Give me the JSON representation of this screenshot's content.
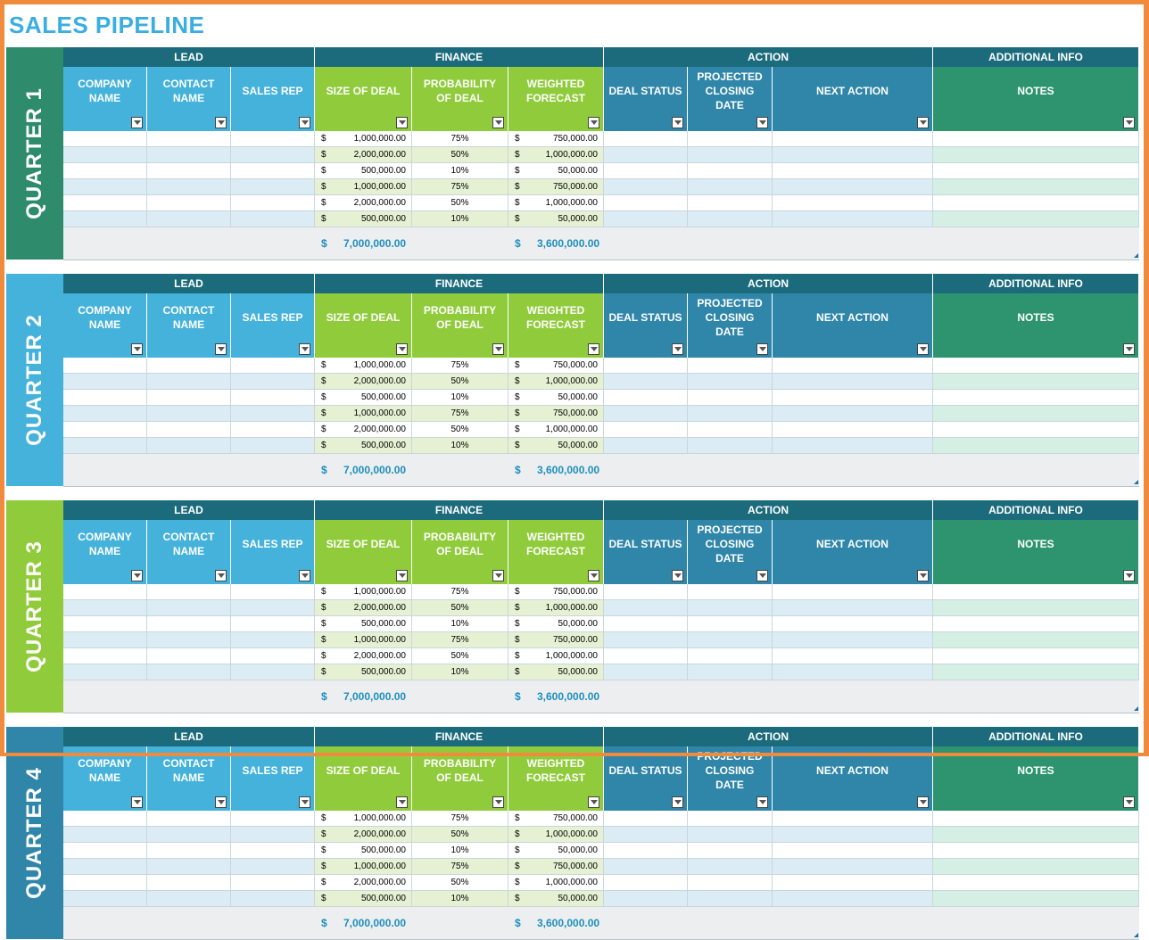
{
  "title": "SALES PIPELINE",
  "colors": {
    "frame": "#f08a3c",
    "title": "#3aaee0",
    "lead_header": "#45b2dc",
    "finance_header": "#8fcb3a",
    "action_header": "#2f86a8",
    "info_header": "#2e9470",
    "group_header": "#1b6b7c",
    "row_lead_alt": "#dcecf5",
    "row_finance_alt": "#e5f1d2",
    "row_info_alt": "#d6efe4",
    "total_text": "#1e8fbd",
    "quarter_colors": [
      "#2e8c6c",
      "#45b2dc",
      "#8fcb3a",
      "#2f86a8"
    ]
  },
  "groups": [
    "LEAD",
    "FINANCE",
    "ACTION",
    "ADDITIONAL INFO"
  ],
  "columns": [
    {
      "label": "COMPANY NAME",
      "group": "LEAD"
    },
    {
      "label": "CONTACT NAME",
      "group": "LEAD"
    },
    {
      "label": "SALES REP",
      "group": "LEAD"
    },
    {
      "label": "SIZE OF DEAL",
      "group": "FINANCE"
    },
    {
      "label": "PROBABILITY OF DEAL",
      "group": "FINANCE"
    },
    {
      "label": "WEIGHTED FORECAST",
      "group": "FINANCE"
    },
    {
      "label": "DEAL STATUS",
      "group": "ACTION"
    },
    {
      "label": "PROJECTED CLOSING DATE",
      "group": "ACTION"
    },
    {
      "label": "NEXT ACTION",
      "group": "ACTION"
    },
    {
      "label": "NOTES",
      "group": "ADDITIONAL INFO"
    }
  ],
  "currency_symbol": "$",
  "rows": [
    {
      "size": "1,000,000.00",
      "probability": "75%",
      "forecast": "750,000.00"
    },
    {
      "size": "2,000,000.00",
      "probability": "50%",
      "forecast": "1,000,000.00"
    },
    {
      "size": "500,000.00",
      "probability": "10%",
      "forecast": "50,000.00"
    },
    {
      "size": "1,000,000.00",
      "probability": "75%",
      "forecast": "750,000.00"
    },
    {
      "size": "2,000,000.00",
      "probability": "50%",
      "forecast": "1,000,000.00"
    },
    {
      "size": "500,000.00",
      "probability": "10%",
      "forecast": "50,000.00"
    }
  ],
  "totals": {
    "size": "7,000,000.00",
    "forecast": "3,600,000.00"
  },
  "quarters": [
    {
      "label": "QUARTER 1"
    },
    {
      "label": "QUARTER 2"
    },
    {
      "label": "QUARTER 3"
    },
    {
      "label": "QUARTER 4"
    }
  ],
  "dropdown_icon": "chevron-down-icon"
}
